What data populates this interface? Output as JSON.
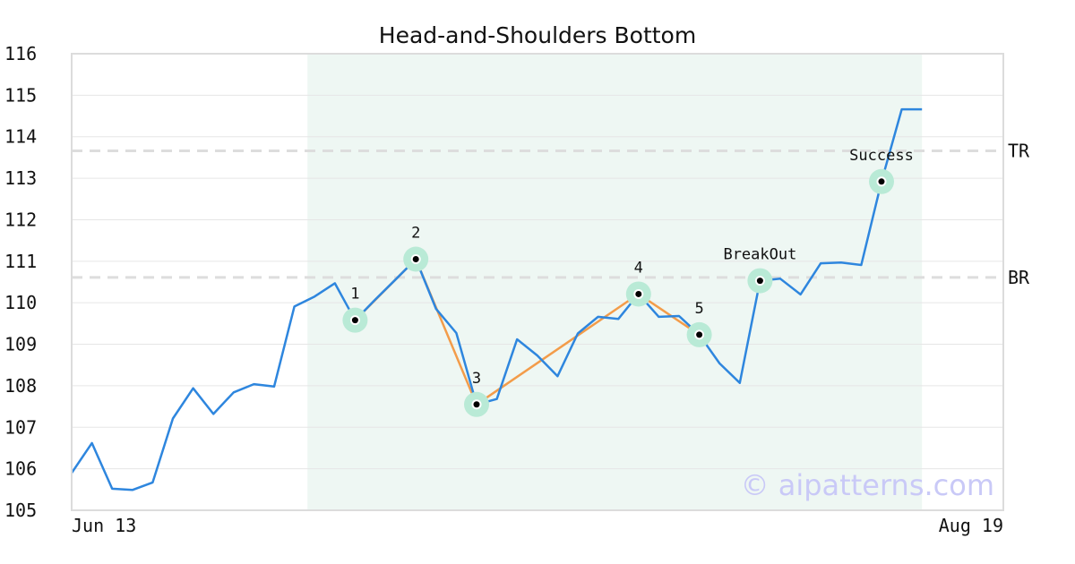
{
  "chart_data": {
    "type": "line",
    "title": "Head-and-Shoulders Bottom",
    "xlabel": "",
    "ylabel": "",
    "ylim": [
      105,
      116
    ],
    "y_ticks": [
      "105",
      "106",
      "107",
      "108",
      "109",
      "110",
      "111",
      "112",
      "113",
      "114",
      "115",
      "116"
    ],
    "x_tick_labels": [
      "Jun 13",
      "Aug 19"
    ],
    "grid": "horizontal",
    "series": [
      {
        "color": "#2e86de",
        "values": [
          105.9,
          106.62,
          105.52,
          105.49,
          105.67,
          107.21,
          107.94,
          107.32,
          107.84,
          108.04,
          107.98,
          109.91,
          110.15,
          110.47,
          109.58,
          110.08,
          110.56,
          111.05,
          109.85,
          109.27,
          107.55,
          107.68,
          109.12,
          108.73,
          108.23,
          109.26,
          109.66,
          109.61,
          110.21,
          109.66,
          109.68,
          109.23,
          108.54,
          108.07,
          110.53,
          110.58,
          110.2,
          110.95,
          110.97,
          110.91,
          112.92,
          114.66,
          114.66
        ]
      }
    ],
    "pattern_points": [
      {
        "label": "1",
        "index": 14,
        "value": 109.58
      },
      {
        "label": "2",
        "index": 17,
        "value": 111.05
      },
      {
        "label": "3",
        "index": 20,
        "value": 107.55
      },
      {
        "label": "4",
        "index": 28,
        "value": 110.21
      },
      {
        "label": "5",
        "index": 31,
        "value": 109.23
      }
    ],
    "events": [
      {
        "label": "BreakOut",
        "index": 34,
        "value": 110.53
      },
      {
        "label": "Success",
        "index": 40,
        "value": 112.92
      }
    ],
    "reference_lines": [
      {
        "label": "TR",
        "value": 113.66
      },
      {
        "label": "BR",
        "value": 110.61
      }
    ],
    "pattern_line_color": "#f39c4a",
    "marker_halo_color": "#b9ead6",
    "highlight_color": "#eef7f3",
    "highlight_range": [
      12,
      42
    ],
    "watermark": "© aipatterns.com"
  }
}
